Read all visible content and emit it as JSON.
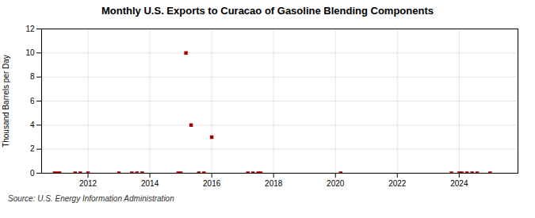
{
  "chart_data": {
    "type": "scatter",
    "title": "Monthly U.S. Exports to Curacao of Gasoline Blending Components",
    "ylabel": "Thousand Barrels per Day",
    "annotations": [
      "Source: U.S. Energy Information Administration"
    ],
    "color": "#aa0000",
    "marker": "square",
    "grid": true,
    "xlim": [
      2010.5,
      2025.9
    ],
    "xticks": [
      2012,
      2014,
      2016,
      2018,
      2020,
      2022,
      2024
    ],
    "ylim": [
      0,
      12
    ],
    "yticks": [
      0,
      2,
      4,
      6,
      8,
      10,
      12
    ],
    "x": [
      2010.917,
      2011.0,
      2011.083,
      2011.583,
      2011.75,
      2012.0,
      2013.0,
      2013.417,
      2013.583,
      2013.75,
      2014.917,
      2015.0,
      2015.167,
      2015.333,
      2015.583,
      2015.75,
      2016.0,
      2017.167,
      2017.333,
      2017.5,
      2017.583,
      2020.167,
      2023.75,
      2024.0,
      2024.083,
      2024.25,
      2024.417,
      2024.583,
      2025.0
    ],
    "values": [
      0.0,
      0.0,
      0.0,
      0.0,
      0.0,
      0.0,
      0.0,
      0.0,
      0.0,
      0.0,
      0.0,
      0.0,
      10.0,
      4.0,
      0.0,
      0.0,
      3.0,
      0.0,
      0.0,
      0.0,
      0.0,
      0.0,
      0.0,
      0.0,
      0.0,
      0.0,
      0.0,
      0.0,
      0.0
    ]
  }
}
